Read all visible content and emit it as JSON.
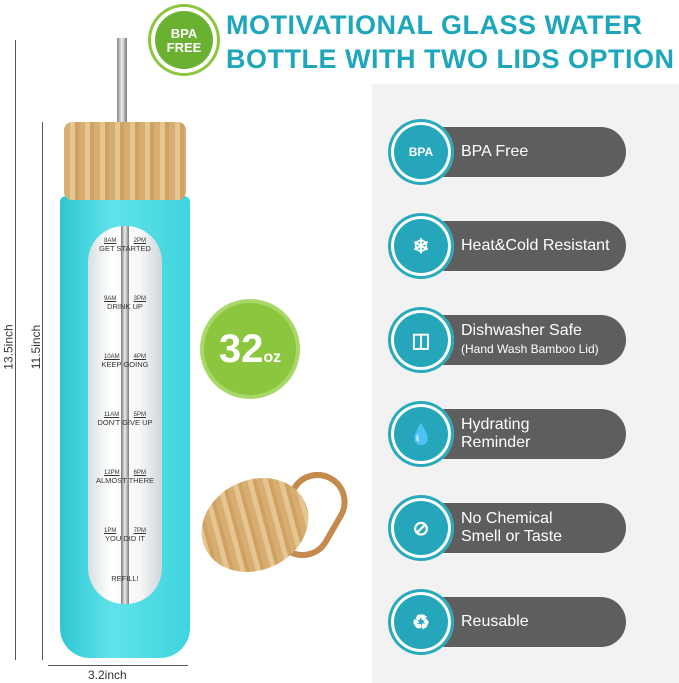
{
  "header": {
    "badge": "BPA FREE",
    "title_line1": "MOTIVATIONAL GLASS WATER",
    "title_line2": "BOTTLE WITH TWO LIDS OPTION"
  },
  "capacity": {
    "value": "32",
    "unit": "oz"
  },
  "dimensions": {
    "total_height": "13.5inch",
    "body_height": "11.5inch",
    "width": "3.2inch"
  },
  "markings": [
    {
      "left": "8AM",
      "right": "2PM",
      "text": "GET STARTED"
    },
    {
      "left": "9AM",
      "right": "3PM",
      "text": "DRINK UP"
    },
    {
      "left": "10AM",
      "right": "4PM",
      "text": "KEEP GOING"
    },
    {
      "left": "11AM",
      "right": "5PM",
      "text": "DON'T GIVE UP"
    },
    {
      "left": "12PM",
      "right": "6PM",
      "text": "ALMOST THERE"
    },
    {
      "left": "1PM",
      "right": "7PM",
      "text": "YOU DID IT"
    }
  ],
  "refill": "REFILL!",
  "colors": {
    "teal": "#1ea7bb",
    "green": "#8cc63f",
    "pill": "#5e5e5e",
    "bottle": "#3fd4de"
  },
  "features": [
    {
      "icon": "bpa-free-icon",
      "glyph": "BPA",
      "line1": "BPA Free",
      "line2": ""
    },
    {
      "icon": "heat-cold-icon",
      "glyph": "❄",
      "line1": "Heat&Cold Resistant",
      "line2": ""
    },
    {
      "icon": "dishwasher-icon",
      "glyph": "◫",
      "line1": "Dishwasher Safe",
      "line2": "(Hand Wash Bamboo Lid)"
    },
    {
      "icon": "water-drops-icon",
      "glyph": "💧",
      "line1": "Hydrating",
      "line2": "Reminder"
    },
    {
      "icon": "no-chemical-icon",
      "glyph": "⊘",
      "line1": "No Chemical",
      "line2": "Smell or Taste"
    },
    {
      "icon": "recycle-icon",
      "glyph": "♻",
      "line1": "Reusable",
      "line2": ""
    }
  ]
}
